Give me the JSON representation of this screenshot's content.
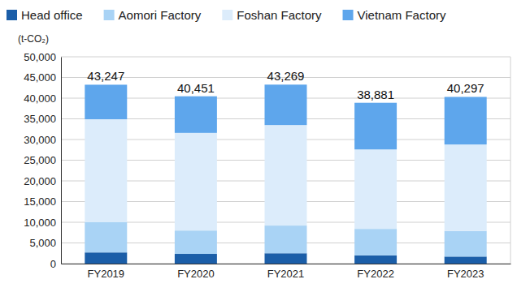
{
  "chart_data": {
    "type": "bar",
    "stacked": true,
    "grid": true,
    "legend": "top",
    "data_labels": true,
    "y_label": "(t-CO₂)",
    "categories": [
      "FY2019",
      "FY2020",
      "FY2021",
      "FY2022",
      "FY2023"
    ],
    "series": [
      {
        "name": "Head office",
        "color": "#1b5ea8",
        "values": [
          2700,
          2350,
          2500,
          2000,
          1700
        ]
      },
      {
        "name": "Aomori Factory",
        "color": "#a9d3f5",
        "values": [
          7300,
          5650,
          6700,
          6400,
          6200
        ]
      },
      {
        "name": "Foshan Factory",
        "color": "#dcecfb",
        "values": [
          24900,
          23600,
          24300,
          19200,
          20900
        ]
      },
      {
        "name": "Vietnam Factory",
        "color": "#5ea6ec",
        "values": [
          8347,
          8851,
          9769,
          11281,
          11497
        ]
      }
    ],
    "totals": [
      43247,
      40451,
      43269,
      38881,
      40297
    ],
    "total_labels": [
      "43,247",
      "40,451",
      "43,269",
      "38,881",
      "40,297"
    ],
    "ylim": [
      0,
      50000
    ],
    "yticks": [
      0,
      {
        "value": 5000,
        "label": "5,000"
      },
      {
        "value": 10000,
        "label": "10,000"
      },
      {
        "value": 15000,
        "label": "15,000"
      },
      {
        "value": 20000,
        "label": "20,000"
      },
      {
        "value": 25000,
        "label": "25,000"
      },
      {
        "value": 30000,
        "label": "30,000"
      },
      {
        "value": 35000,
        "label": "35,000"
      },
      {
        "value": 40000,
        "label": "40,000"
      },
      {
        "value": 45000,
        "label": "45,000"
      },
      {
        "value": 50000,
        "label": "50,000"
      }
    ]
  }
}
